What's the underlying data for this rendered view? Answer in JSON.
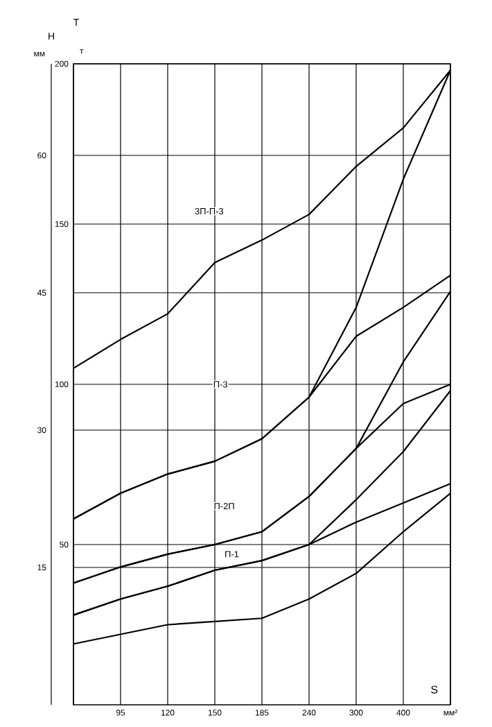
{
  "chart_data": {
    "type": "line",
    "categories": [
      null,
      "95",
      "120",
      "150",
      "185",
      "240",
      "300",
      "400",
      "мм²"
    ],
    "xlabel": "S",
    "ylabel": "T",
    "y2label": "H",
    "ylim": [
      0,
      200
    ],
    "yticks": [
      50,
      100,
      150,
      200
    ],
    "y2lim": [
      0,
      70
    ],
    "y2ticks": [
      15,
      30,
      45,
      60
    ],
    "grid": true,
    "annotations": [
      "мм",
      "т",
      "3П-П-3",
      "П-3",
      "П-2П",
      "П-1"
    ],
    "series": [
      {
        "color": "#000000",
        "values": [
          105,
          114,
          122,
          138,
          145,
          153,
          168,
          180,
          198
        ]
      },
      {
        "color": "#000000",
        "values": [
          58,
          66,
          72,
          76,
          83,
          96,
          124,
          164,
          198
        ]
      },
      {
        "color": "#000000",
        "values": [
          58,
          66,
          72,
          76,
          83,
          96,
          115,
          124,
          134
        ]
      },
      {
        "color": "#000000",
        "values": [
          38,
          43,
          47,
          50,
          54,
          65,
          80,
          107,
          129
        ]
      },
      {
        "color": "#000000",
        "values": [
          38,
          43,
          47,
          50,
          54,
          65,
          80,
          94,
          100
        ]
      },
      {
        "color": "#000000",
        "values": [
          28,
          33,
          37,
          42,
          45,
          50,
          64,
          79,
          98
        ]
      },
      {
        "color": "#000000",
        "values": [
          28,
          33,
          37,
          42,
          45,
          50,
          57,
          63,
          69
        ]
      },
      {
        "color": "#000000",
        "values": [
          19,
          22,
          25,
          26,
          27,
          33,
          41,
          54,
          66
        ]
      }
    ]
  }
}
